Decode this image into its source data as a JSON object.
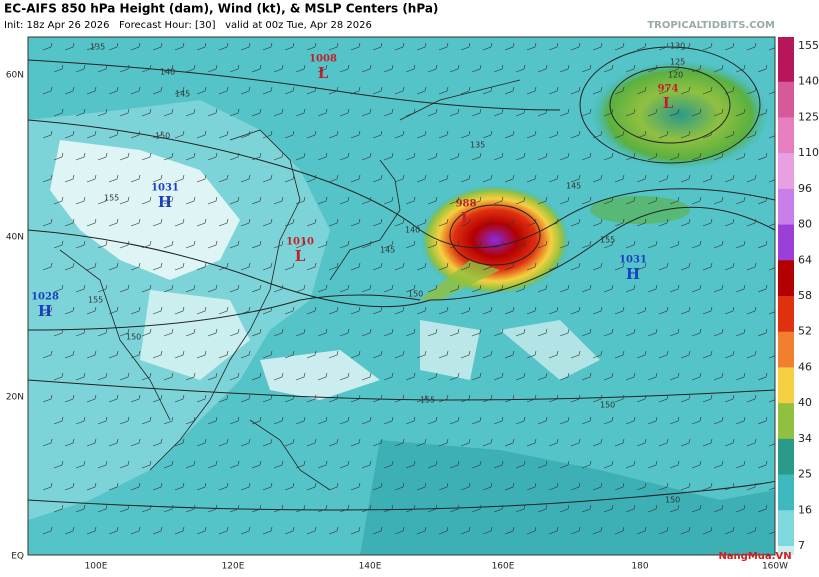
{
  "header": {
    "title": "EC-AIFS 850 hPa Height (dam), Wind (kt), & MSLP Centers (hPa)",
    "subtitle": "Init: 18z Apr 26 2026   Forecast Hour: [30]   valid at 00z Tue, Apr 28 2026",
    "source": "TROPICALTIDBITS.COM"
  },
  "lat_labels": [
    "60N",
    "40N",
    "20N",
    "EQ"
  ],
  "lon_labels": [
    "100E",
    "120E",
    "140E",
    "160E",
    "180",
    "160W"
  ],
  "colorbar": {
    "labels": [
      155,
      140,
      125,
      110,
      96,
      80,
      64,
      58,
      52,
      46,
      40,
      34,
      25,
      16,
      7
    ],
    "colors": [
      "#b5175a",
      "#d65a9a",
      "#e57fc0",
      "#e8a0e0",
      "#c77ee8",
      "#9b3fd8",
      "#b30000",
      "#e03010",
      "#f08030",
      "#f5d040",
      "#90c040",
      "#2a9a8a",
      "#40b8c0",
      "#7fd8dc"
    ]
  },
  "centers": [
    {
      "letter": "L",
      "pressure": "1008"
    },
    {
      "letter": "H",
      "pressure": "1031"
    },
    {
      "letter": "L",
      "pressure": "1010"
    },
    {
      "letter": "H",
      "pressure": "1028"
    },
    {
      "letter": "L",
      "pressure": "988"
    },
    {
      "letter": "L",
      "pressure": "974"
    },
    {
      "letter": "H",
      "pressure": "1031"
    }
  ],
  "contour_labels": [
    "135",
    "140",
    "145",
    "150",
    "155",
    "155",
    "150",
    "135",
    "140",
    "145",
    "150",
    "155",
    "155",
    "150",
    "150",
    "130",
    "125",
    "120",
    "145"
  ],
  "watermark": "NangMua.VN"
}
